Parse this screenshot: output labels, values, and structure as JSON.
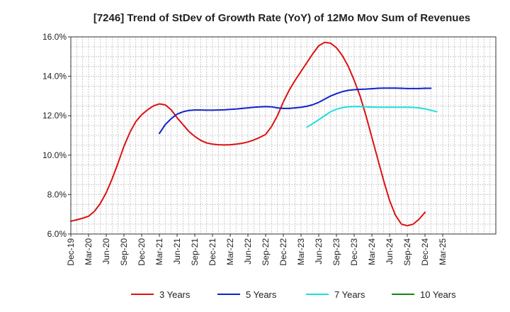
{
  "chart_data": {
    "type": "line",
    "title": "[7246]  Trend of StDev of Growth Rate (YoY) of 12Mo Mov Sum of Revenues",
    "xlabel": "",
    "ylabel": "",
    "ylim": [
      6.0,
      16.0
    ],
    "yticks": [
      "6.0%",
      "8.0%",
      "10.0%",
      "12.0%",
      "14.0%",
      "16.0%"
    ],
    "ytick_values": [
      6,
      8,
      10,
      12,
      14,
      16
    ],
    "x_range_months": [
      0,
      72
    ],
    "xticks": [
      "Dec-19",
      "Mar-20",
      "Jun-20",
      "Sep-20",
      "Dec-20",
      "Mar-21",
      "Jun-21",
      "Sep-21",
      "Dec-21",
      "Mar-22",
      "Jun-22",
      "Sep-22",
      "Dec-22",
      "Mar-23",
      "Jun-23",
      "Sep-23",
      "Dec-23",
      "Mar-24",
      "Jun-24",
      "Sep-24",
      "Dec-24",
      "Mar-25"
    ],
    "grid": true,
    "legend_position": "bottom",
    "series": [
      {
        "name": "3 Years",
        "color": "#dd1111",
        "x": [
          0,
          1,
          2,
          3,
          4,
          5,
          6,
          7,
          8,
          9,
          10,
          11,
          12,
          13,
          14,
          15,
          16,
          17,
          18,
          19,
          20,
          21,
          22,
          23,
          24,
          25,
          26,
          27,
          28,
          29,
          30,
          31,
          32,
          33,
          34,
          35,
          36,
          37,
          38,
          39,
          40,
          41,
          42,
          43,
          44,
          45,
          46,
          47,
          48,
          49,
          50,
          51,
          52,
          53,
          54,
          55,
          56,
          57,
          58,
          59,
          60,
          61,
          62,
          63,
          64,
          65,
          66,
          67,
          68,
          69,
          70,
          71,
          72
        ],
        "values": [
          6.65,
          6.72,
          6.8,
          6.9,
          7.15,
          7.55,
          8.1,
          8.8,
          9.6,
          10.45,
          11.15,
          11.7,
          12.05,
          12.3,
          12.5,
          12.6,
          12.55,
          12.3,
          11.9,
          11.55,
          11.2,
          10.95,
          10.75,
          10.62,
          10.56,
          10.53,
          10.52,
          10.53,
          10.56,
          10.6,
          10.67,
          10.77,
          10.9,
          11.05,
          11.45,
          12.0,
          12.7,
          13.3,
          13.8,
          14.25,
          14.7,
          15.15,
          15.55,
          15.72,
          15.68,
          15.45,
          15.05,
          14.5,
          13.8,
          13.0,
          12.0,
          10.9,
          9.8,
          8.7,
          7.7,
          6.95,
          6.5,
          6.42,
          6.5,
          6.75,
          7.1,
          null,
          null,
          null,
          null,
          null,
          null,
          null,
          null,
          null,
          null,
          null,
          null
        ]
      },
      {
        "name": "5 Years",
        "color": "#1122cc",
        "x": [
          0,
          1,
          2,
          3,
          4,
          5,
          6,
          7,
          8,
          9,
          10,
          11,
          12,
          13,
          14,
          15,
          16,
          17,
          18,
          19,
          20,
          21,
          22,
          23,
          24,
          25,
          26,
          27,
          28,
          29,
          30,
          31,
          32,
          33,
          34,
          35,
          36,
          37,
          38,
          39,
          40,
          41,
          42,
          43,
          44,
          45,
          46,
          47,
          48,
          49,
          50,
          51,
          52,
          53,
          54,
          55,
          56,
          57,
          58,
          59,
          60,
          61,
          62,
          63,
          64,
          65,
          66,
          67,
          68,
          69,
          70,
          71,
          72
        ],
        "values": [
          null,
          null,
          null,
          null,
          null,
          null,
          null,
          null,
          null,
          null,
          null,
          null,
          null,
          null,
          null,
          11.1,
          11.55,
          11.85,
          12.08,
          12.2,
          12.27,
          12.29,
          12.29,
          12.28,
          12.28,
          12.29,
          12.3,
          12.32,
          12.34,
          12.37,
          12.4,
          12.43,
          12.45,
          12.46,
          12.45,
          12.4,
          12.37,
          12.37,
          12.4,
          12.43,
          12.48,
          12.56,
          12.68,
          12.84,
          13.0,
          13.12,
          13.22,
          13.29,
          13.32,
          13.34,
          13.35,
          13.37,
          13.39,
          13.4,
          13.4,
          13.4,
          13.39,
          13.38,
          13.38,
          13.38,
          13.39,
          13.39,
          null,
          null,
          null,
          null,
          null,
          null,
          null,
          null,
          null,
          null,
          null
        ]
      },
      {
        "name": "7 Years",
        "color": "#22dddd",
        "x": [
          0,
          1,
          2,
          3,
          4,
          5,
          6,
          7,
          8,
          9,
          10,
          11,
          12,
          13,
          14,
          15,
          16,
          17,
          18,
          19,
          20,
          21,
          22,
          23,
          24,
          25,
          26,
          27,
          28,
          29,
          30,
          31,
          32,
          33,
          34,
          35,
          36,
          37,
          38,
          39,
          40,
          41,
          42,
          43,
          44,
          45,
          46,
          47,
          48,
          49,
          50,
          51,
          52,
          53,
          54,
          55,
          56,
          57,
          58,
          59,
          60,
          61,
          62,
          63,
          64,
          65,
          66,
          67,
          68,
          69,
          70,
          71,
          72
        ],
        "values": [
          null,
          null,
          null,
          null,
          null,
          null,
          null,
          null,
          null,
          null,
          null,
          null,
          null,
          null,
          null,
          null,
          null,
          null,
          null,
          null,
          null,
          null,
          null,
          null,
          null,
          null,
          null,
          null,
          null,
          null,
          null,
          null,
          null,
          null,
          null,
          null,
          null,
          null,
          null,
          null,
          11.42,
          11.6,
          11.8,
          12.0,
          12.2,
          12.33,
          12.41,
          12.45,
          12.46,
          12.46,
          12.45,
          12.44,
          12.43,
          12.43,
          12.43,
          12.43,
          12.43,
          12.43,
          12.42,
          12.4,
          12.35,
          12.28,
          12.2,
          null,
          null,
          null,
          null,
          null,
          null,
          null,
          null,
          null,
          null
        ]
      },
      {
        "name": "10 Years",
        "color": "#118811",
        "x": [],
        "values": []
      }
    ]
  }
}
